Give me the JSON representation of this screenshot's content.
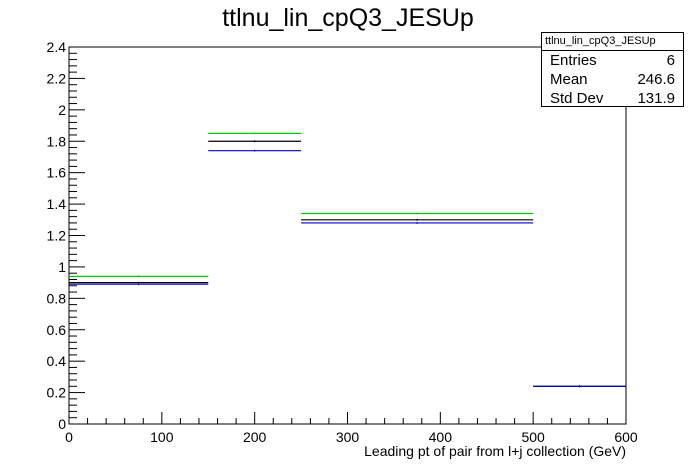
{
  "chart_data": {
    "type": "histogram",
    "title": "ttlnu_lin_cpQ3_JESUp",
    "xlabel": "Leading pt of pair from l+j collection (GeV)",
    "ylabel": "",
    "xlim": [
      0,
      600
    ],
    "ylim": [
      0,
      2.4
    ],
    "x_ticks": [
      0,
      100,
      200,
      300,
      400,
      500,
      600
    ],
    "y_ticks": [
      0,
      0.2,
      0.4,
      0.6,
      0.8,
      1,
      1.2,
      1.4,
      1.6,
      1.8,
      2,
      2.2,
      2.4
    ],
    "bin_edges": [
      0,
      150,
      250,
      500,
      600
    ],
    "series": [
      {
        "color": "#00cc00",
        "values": [
          0.94,
          1.85,
          1.34,
          0.24
        ]
      },
      {
        "color": "#000000",
        "values": [
          0.9,
          1.8,
          1.3,
          0.24
        ]
      },
      {
        "color": "#0000cc",
        "values": [
          0.89,
          1.74,
          1.28,
          0.24
        ]
      }
    ],
    "stats": {
      "name": "ttlnu_lin_cpQ3_JESUp",
      "entries_label": "Entries",
      "entries": "6",
      "mean_label": "Mean",
      "mean": "246.6",
      "stddev_label": "Std Dev",
      "stddev": "131.9"
    }
  }
}
